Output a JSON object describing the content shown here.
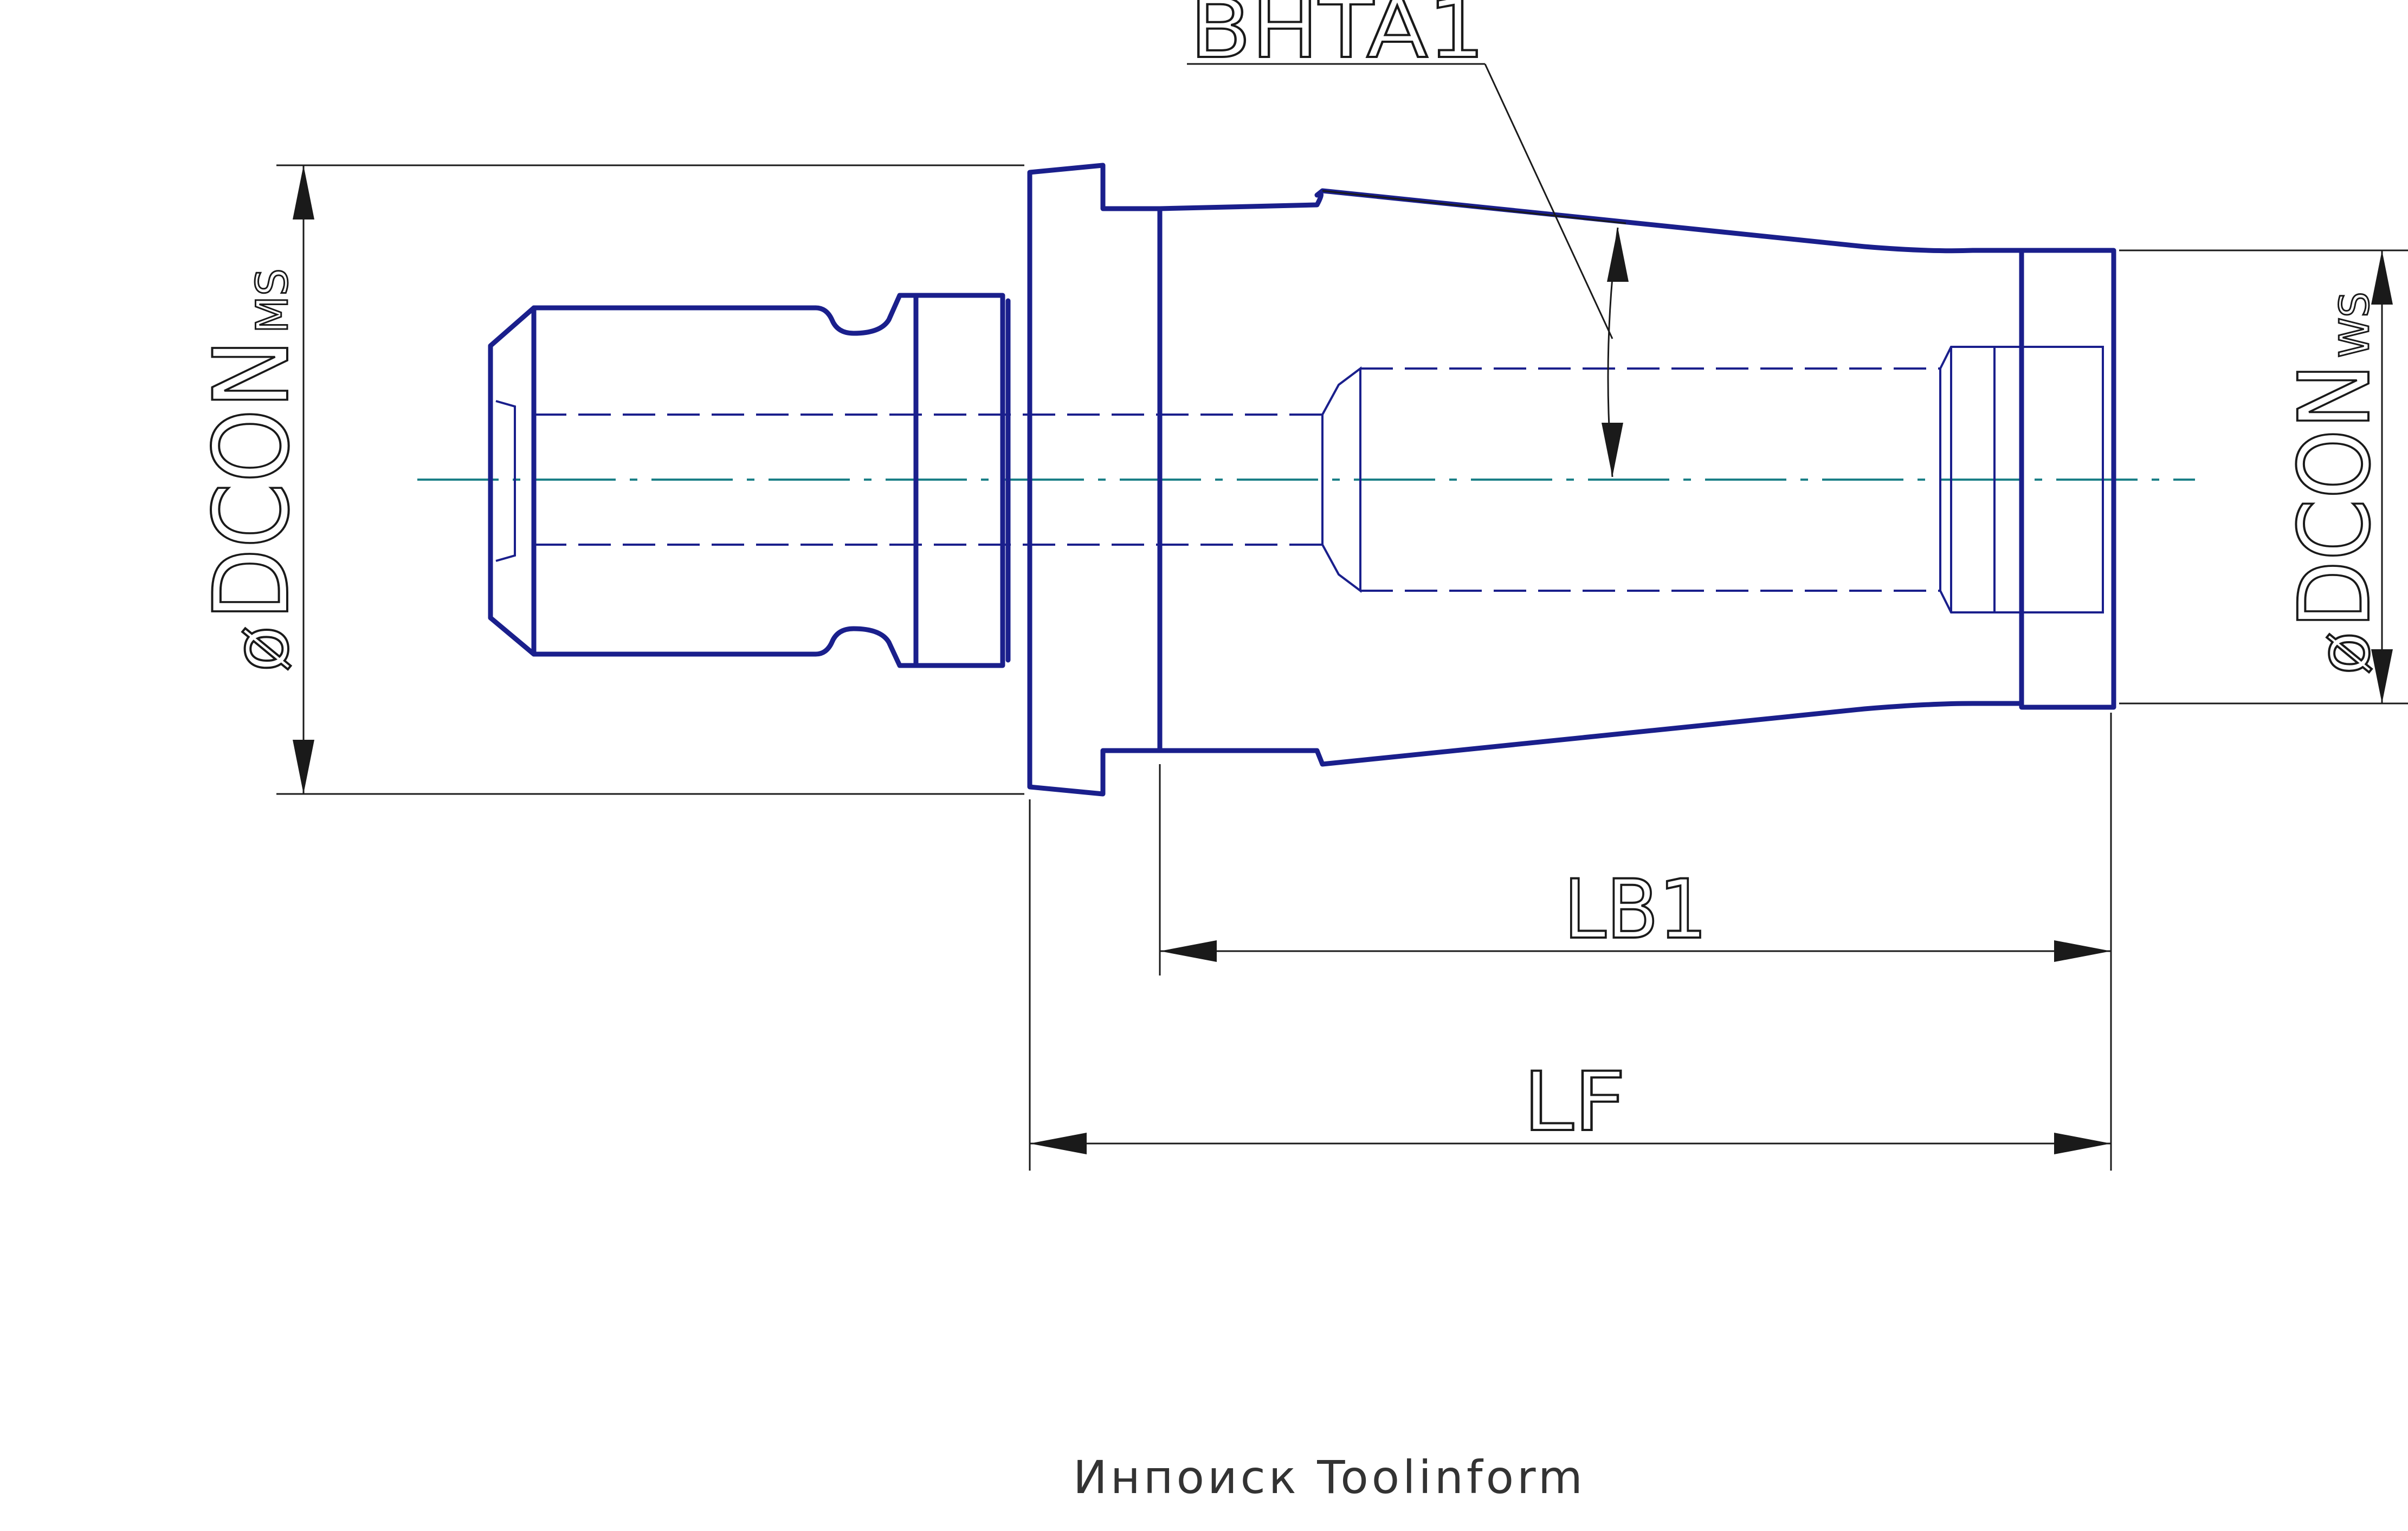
{
  "dimensions": {
    "bhta": "BHTA1",
    "dcon_ms_symbol": "ø",
    "dcon_ms_label": "DCON",
    "dcon_ms_sub": "MS",
    "dcon_ws_symbol": "ø",
    "dcon_ws_label": "DCON",
    "dcon_ws_sub": "WS",
    "lb1": "LB1",
    "lf": "LF"
  },
  "watermark": "Инпоиск Toolinform",
  "colors": {
    "part_outline": "#1a1f8c",
    "centerline": "#1a7f86",
    "dimension": "#1a1a1a"
  }
}
